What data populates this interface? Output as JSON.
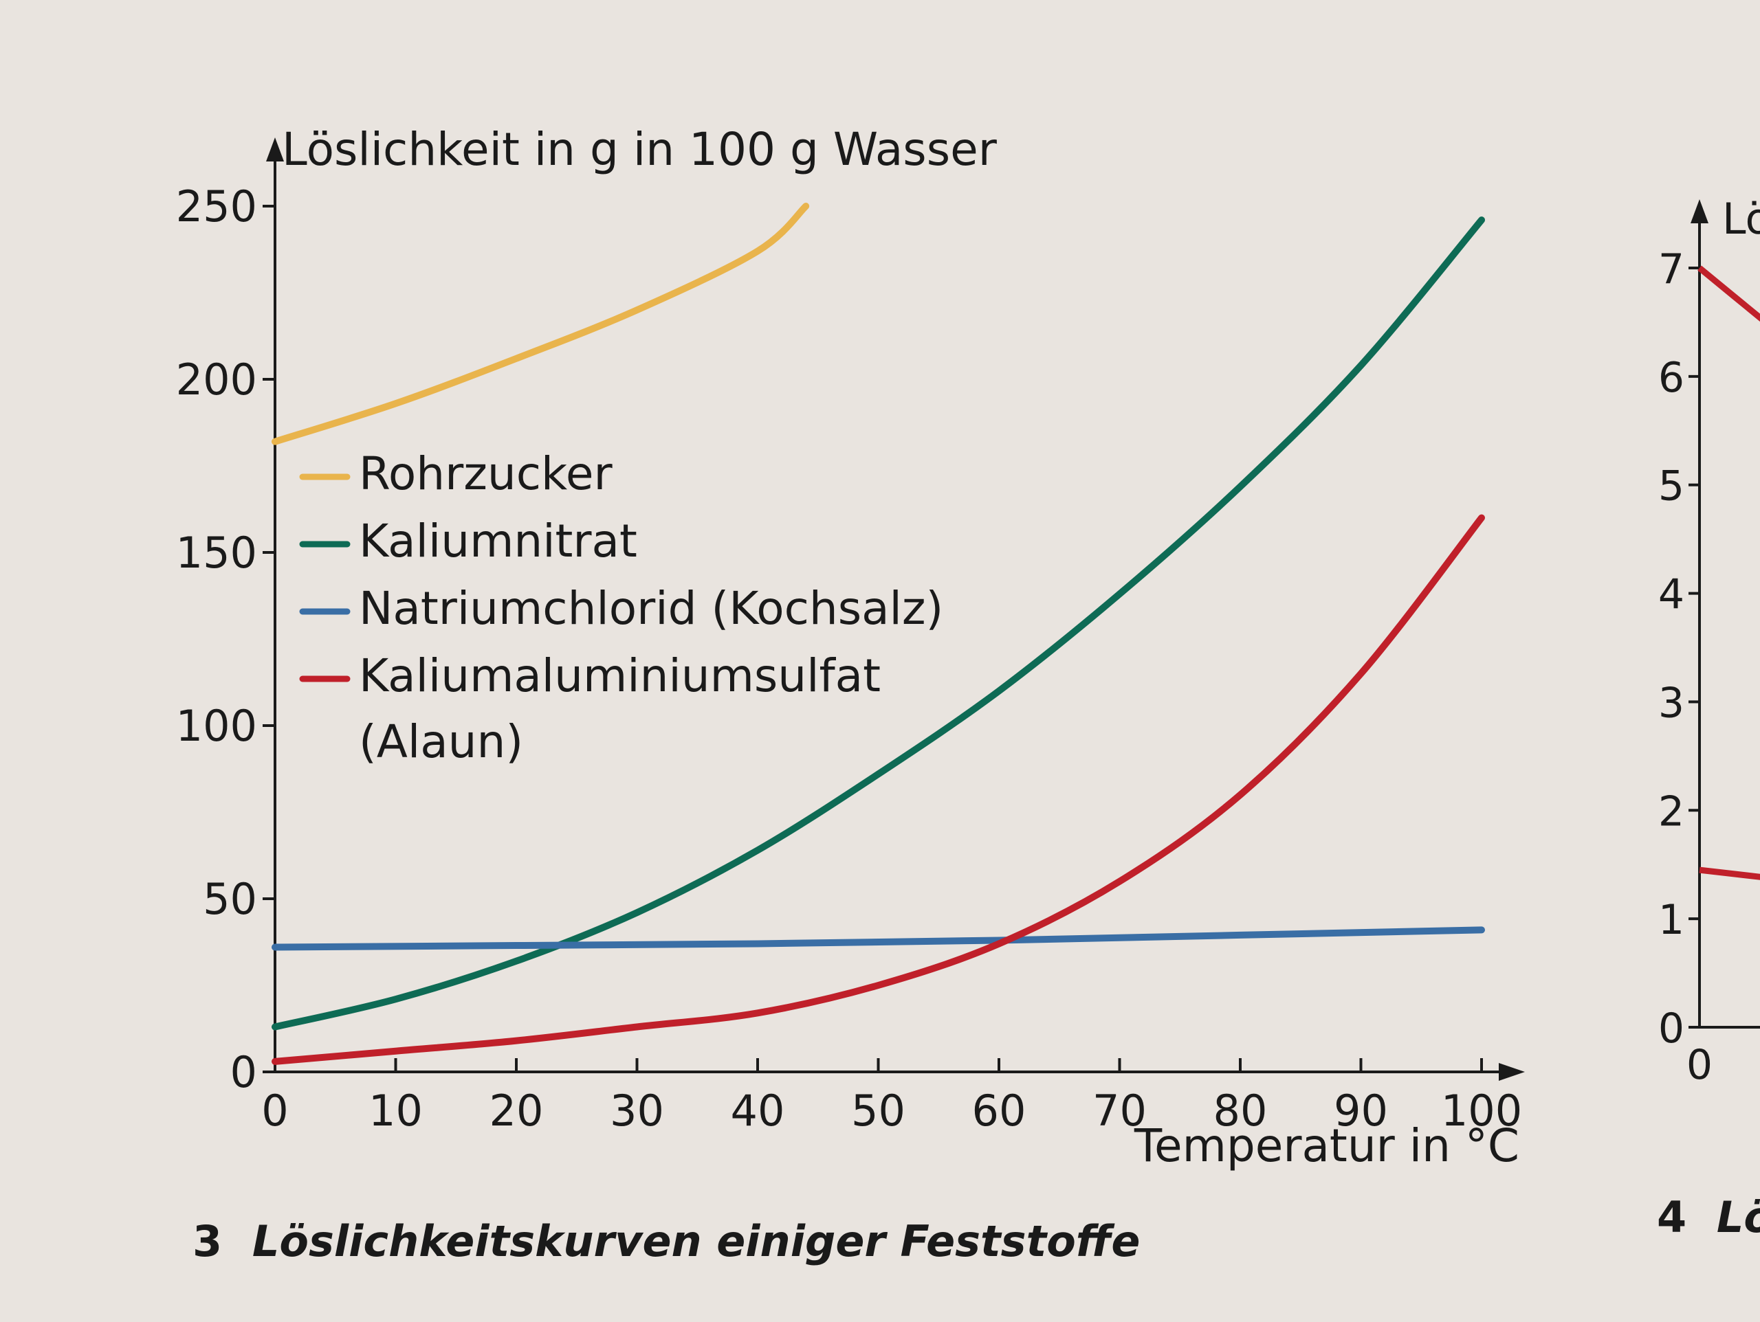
{
  "caption": {
    "number": "3",
    "text": "Löslichkeitskurven einiger Feststoffe"
  },
  "caption2": {
    "number": "4",
    "text": "Lö"
  },
  "chart_data": [
    {
      "type": "line",
      "ylabel": "Löslichkeit in g in 100 g Wasser",
      "xlabel": "Temperatur in °C",
      "xlim": [
        0,
        100
      ],
      "ylim": [
        0,
        250
      ],
      "xticks": [
        0,
        10,
        20,
        30,
        40,
        50,
        60,
        70,
        80,
        90,
        100
      ],
      "yticks": [
        0,
        50,
        100,
        150,
        200,
        250
      ],
      "grid": false,
      "legend": "upper-left",
      "series": [
        {
          "name": "Rohrzucker",
          "color": "#e9b44c",
          "x": [
            0,
            10,
            20,
            30,
            40,
            44
          ],
          "y": [
            182,
            193,
            206,
            220,
            237,
            250
          ]
        },
        {
          "name": "Kaliumnitrat",
          "color": "#0e6b55",
          "x": [
            0,
            10,
            20,
            30,
            40,
            50,
            60,
            70,
            80,
            90,
            100
          ],
          "y": [
            13,
            21,
            32,
            46,
            64,
            86,
            110,
            138,
            169,
            204,
            246
          ]
        },
        {
          "name": "Natriumchlorid (Kochsalz)",
          "color": "#3a6ea5",
          "x": [
            0,
            20,
            40,
            60,
            80,
            100
          ],
          "y": [
            36,
            36.5,
            37,
            38,
            39.5,
            41
          ]
        },
        {
          "name": "Kaliumaluminiumsulfat\n(Alaun)",
          "name_lines": [
            "Kaliumaluminiumsulfat",
            "(Alaun)"
          ],
          "color": "#c0202a",
          "x": [
            0,
            10,
            20,
            30,
            40,
            50,
            60,
            70,
            80,
            90,
            100
          ],
          "y": [
            3,
            6,
            9,
            13,
            17,
            25,
            37,
            55,
            80,
            115,
            160
          ]
        }
      ]
    },
    {
      "type": "line",
      "ylabel": "Lö",
      "xlim": [
        0,
        10
      ],
      "ylim": [
        0,
        7
      ],
      "xticks": [
        0
      ],
      "yticks": [
        0,
        1,
        2,
        3,
        4,
        5,
        6,
        7
      ],
      "series": [
        {
          "color": "#c0202a",
          "x": [
            0,
            1.2
          ],
          "y": [
            7.0,
            6.5
          ]
        },
        {
          "color": "#c0202a",
          "x": [
            0,
            1.2
          ],
          "y": [
            1.45,
            1.38
          ]
        }
      ]
    }
  ]
}
